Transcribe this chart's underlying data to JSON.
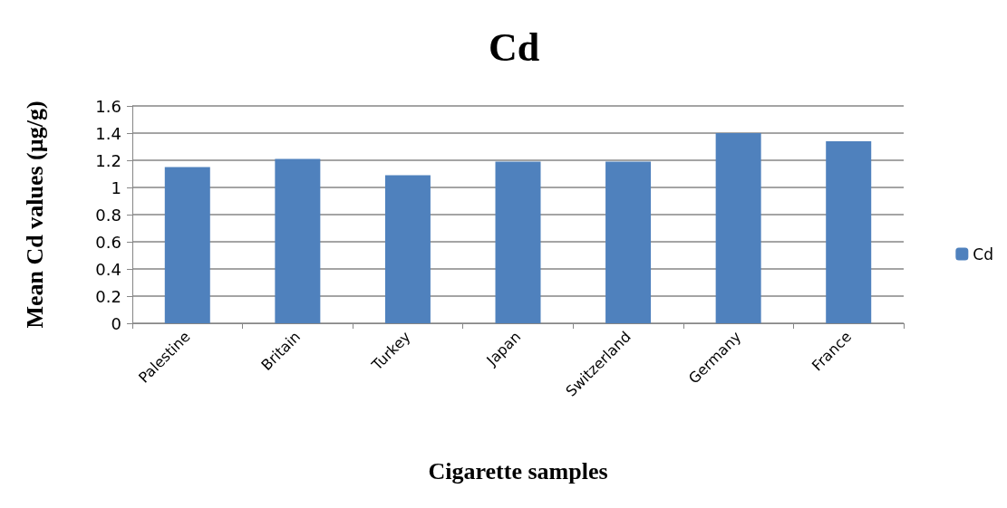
{
  "chart_data": {
    "type": "bar",
    "title": "Cd",
    "xlabel": "Cigarette samples",
    "ylabel": "Mean Cd values (µg/g)",
    "categories": [
      "Palestine",
      "Britain",
      "Turkey",
      "Japan",
      "Switzerland",
      "Germany",
      "France"
    ],
    "series": [
      {
        "name": "Cd",
        "color": "#4f81bd",
        "values": [
          1.15,
          1.21,
          1.09,
          1.19,
          1.19,
          1.4,
          1.34
        ]
      }
    ],
    "ylim": [
      0,
      1.6
    ],
    "yticks": [
      0,
      0.2,
      0.4,
      0.6,
      0.8,
      1,
      1.2,
      1.4,
      1.6
    ],
    "grid": "y",
    "legend": "right"
  }
}
